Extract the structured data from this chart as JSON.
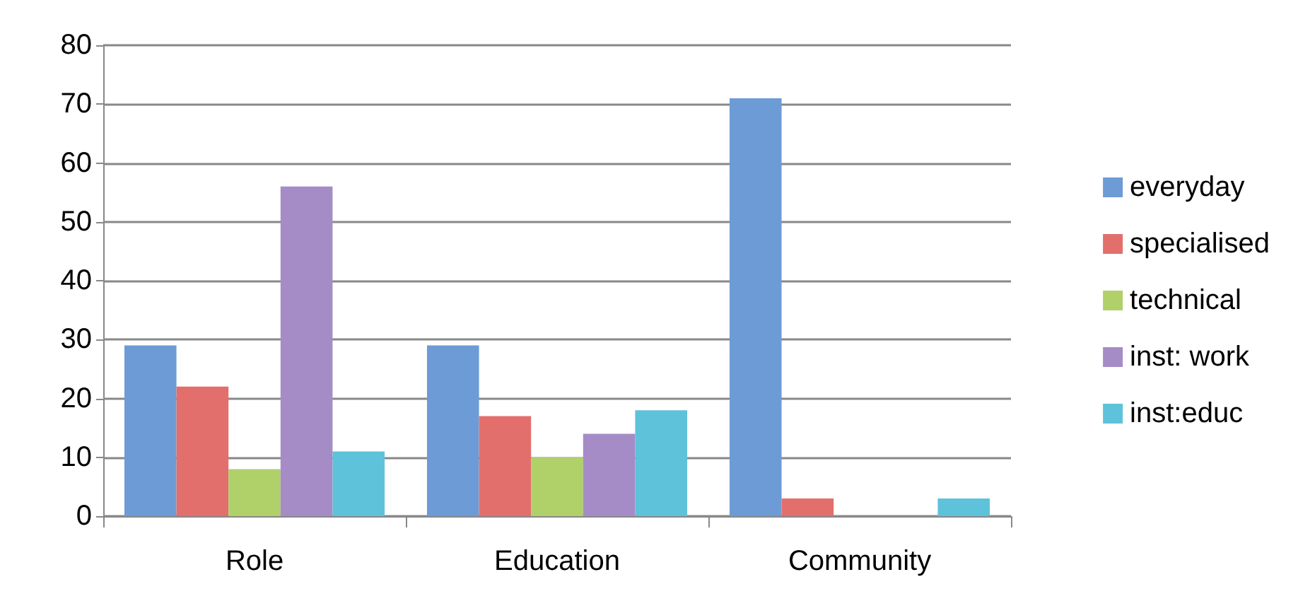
{
  "chart_data": {
    "type": "bar",
    "categories": [
      "Role",
      "Education",
      "Community"
    ],
    "series": [
      {
        "name": "everyday",
        "color": "#6d9bd6",
        "values": [
          29,
          29,
          71
        ]
      },
      {
        "name": "specialised",
        "color": "#e26f6b",
        "values": [
          22,
          17,
          3
        ]
      },
      {
        "name": "technical",
        "color": "#b0d06a",
        "values": [
          8,
          10,
          0
        ]
      },
      {
        "name": "inst: work",
        "color": "#a68cc6",
        "values": [
          56,
          14,
          0
        ]
      },
      {
        "name": "inst:educ",
        "color": "#5ec2da",
        "values": [
          11,
          18,
          3
        ]
      }
    ],
    "ylim": [
      0,
      80
    ],
    "yticks": [
      0,
      10,
      20,
      30,
      40,
      50,
      60,
      70,
      80
    ],
    "grid": "y",
    "legend": "right"
  }
}
